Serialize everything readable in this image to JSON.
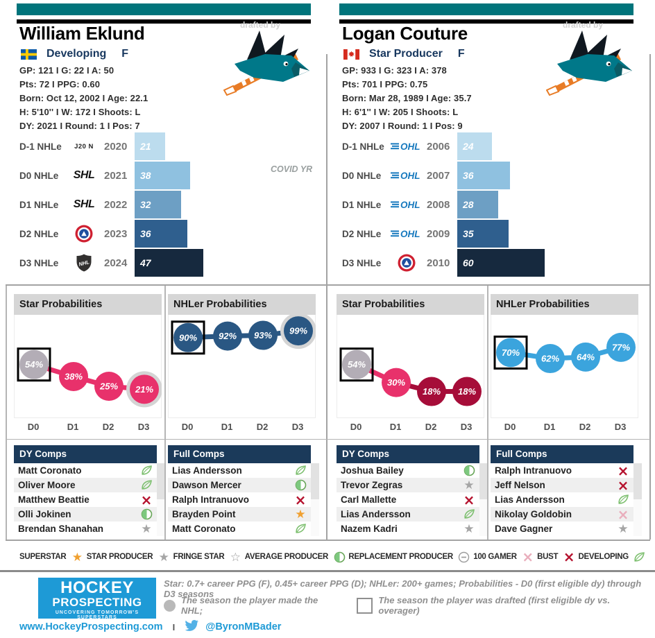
{
  "colors": {
    "teal_bar": "#00747b",
    "black_bar": "#000000",
    "bar_palette": [
      "#bcdcee",
      "#8fc1e0",
      "#6d9fc4",
      "#2f5f8e",
      "#16293e"
    ],
    "star_pink": "#e8316b",
    "star_crimson": "#a60d39",
    "nhler_navy": "#2a5783",
    "nhler_ltblue": "#3ba4dd",
    "made_nhl_gray": "#b3adb6",
    "table_header_navy": "#1b3a5a",
    "panel_header_gray": "#d6d6d6",
    "superstar_orange": "#f0a030",
    "gray_star": "#a5a5a5",
    "developing_green": "#7cbf6e",
    "bust_red": "#b5122e",
    "gamer_pink": "#e9aebc",
    "brand_blue": "#1e9ad6",
    "ohl_blue": "#1779be",
    "ahl_red": "#cf2031",
    "ahl_blue": "#1e4f9f"
  },
  "players": [
    {
      "name": "William Eklund",
      "flag": "sweden",
      "status": "Developing",
      "position": "F",
      "stat_lines": [
        "GP: 121 I G: 22 I A: 50",
        "Pts: 72 I PPG: 0.60",
        "Born: Oct 12, 2002 I Age: 22.1",
        "H: 5'10'' I W: 172 I Shoots: L",
        "DY: 2021 I Round: 1 I Pos: 7"
      ],
      "drafted_by_label": "drafted by",
      "team_logo": "san-jose-sharks",
      "charts": {
        "nhle": "eklund-nhle",
        "star": "eklund-star",
        "nhler": "eklund-nhler"
      },
      "dy_comps": {
        "title": "DY Comps",
        "rows": [
          {
            "name": "Matt Coronato",
            "icon": "developing"
          },
          {
            "name": "Oliver Moore",
            "icon": "developing"
          },
          {
            "name": "Matthew Beattie",
            "icon": "bust"
          },
          {
            "name": "Olli Jokinen",
            "icon": "average-producer"
          },
          {
            "name": "Brendan Shanahan",
            "icon": "star-producer"
          }
        ]
      },
      "full_comps": {
        "title": "Full Comps",
        "rows": [
          {
            "name": "Lias Andersson",
            "icon": "developing"
          },
          {
            "name": "Dawson Mercer",
            "icon": "average-producer"
          },
          {
            "name": "Ralph Intranuovo",
            "icon": "bust"
          },
          {
            "name": "Brayden Point",
            "icon": "superstar"
          },
          {
            "name": "Matt Coronato",
            "icon": "developing"
          }
        ]
      }
    },
    {
      "name": "Logan Couture",
      "flag": "canada",
      "status": "Star Producer",
      "position": "F",
      "stat_lines": [
        "GP: 933 I G: 323 I A: 378",
        "Pts: 701 I PPG: 0.75",
        "Born: Mar 28, 1989 I Age: 35.7",
        "H: 6'1'' I W: 205 I Shoots: L",
        "DY: 2007 I Round: 1 I Pos: 9"
      ],
      "drafted_by_label": "drafted by",
      "team_logo": "san-jose-sharks",
      "charts": {
        "nhle": "couture-nhle",
        "star": "couture-star",
        "nhler": "couture-nhler"
      },
      "dy_comps": {
        "title": "DY Comps",
        "rows": [
          {
            "name": "Joshua Bailey",
            "icon": "average-producer"
          },
          {
            "name": "Trevor Zegras",
            "icon": "star-producer"
          },
          {
            "name": "Carl Mallette",
            "icon": "bust"
          },
          {
            "name": "Lias Andersson",
            "icon": "developing"
          },
          {
            "name": "Nazem Kadri",
            "icon": "star-producer"
          }
        ]
      },
      "full_comps": {
        "title": "Full Comps",
        "rows": [
          {
            "name": "Ralph Intranuovo",
            "icon": "bust"
          },
          {
            "name": "Jeff Nelson",
            "icon": "bust"
          },
          {
            "name": "Lias Andersson",
            "icon": "developing"
          },
          {
            "name": "Nikolay Goldobin",
            "icon": "100-gamer"
          },
          {
            "name": "Dave Gagner",
            "icon": "star-producer"
          }
        ]
      }
    }
  ],
  "chart_data": [
    {
      "id": "eklund-nhle",
      "type": "bar",
      "orientation": "horizontal",
      "row_labels": [
        "D-1 NHLe",
        "D0 NHLe",
        "D1 NHLe",
        "D2 NHLe",
        "D3 NHLe"
      ],
      "leagues": [
        "J20 N",
        "SHL",
        "SHL",
        "AHL",
        "NHL"
      ],
      "years": [
        "2020",
        "2021",
        "2022",
        "2023",
        "2024"
      ],
      "values": [
        21,
        38,
        32,
        36,
        47
      ],
      "xlim": [
        0,
        65
      ],
      "annotation": {
        "text": "COVID YR",
        "row_index": 1
      }
    },
    {
      "id": "eklund-star",
      "type": "line",
      "title": "Star Probabilities",
      "x": [
        "D0",
        "D1",
        "D2",
        "D3"
      ],
      "values": [
        54,
        38,
        25,
        21
      ],
      "unit": "%",
      "ylim": [
        0,
        100
      ],
      "point_colors": [
        "gray",
        "pink",
        "pink",
        "pink"
      ],
      "drafted_index": 0,
      "made_nhl_halo_index": 3
    },
    {
      "id": "eklund-nhler",
      "type": "line",
      "title": "NHLer Probabilities",
      "x": [
        "D0",
        "D1",
        "D2",
        "D3"
      ],
      "values": [
        90,
        92,
        93,
        99
      ],
      "unit": "%",
      "ylim": [
        0,
        100
      ],
      "point_colors": [
        "navy",
        "navy",
        "navy",
        "navy"
      ],
      "drafted_index": 0,
      "made_nhl_halo_index": 3
    },
    {
      "id": "couture-nhle",
      "type": "bar",
      "orientation": "horizontal",
      "row_labels": [
        "D-1 NHLe",
        "D0 NHLe",
        "D1 NHLe",
        "D2 NHLe",
        "D3 NHLe"
      ],
      "leagues": [
        "OHL",
        "OHL",
        "OHL",
        "OHL",
        "AHL"
      ],
      "years": [
        "2006",
        "2007",
        "2008",
        "2009",
        "2010"
      ],
      "values": [
        24,
        36,
        28,
        35,
        60
      ],
      "xlim": [
        0,
        65
      ],
      "annotation": null
    },
    {
      "id": "couture-star",
      "type": "line",
      "title": "Star Probabilities",
      "x": [
        "D0",
        "D1",
        "D2",
        "D3"
      ],
      "values": [
        54,
        30,
        18,
        18
      ],
      "unit": "%",
      "ylim": [
        0,
        100
      ],
      "point_colors": [
        "gray",
        "pink",
        "crimson",
        "crimson"
      ],
      "drafted_index": 0,
      "made_nhl_halo_index": null
    },
    {
      "id": "couture-nhler",
      "type": "line",
      "title": "NHLer Probabilities",
      "x": [
        "D0",
        "D1",
        "D2",
        "D3"
      ],
      "values": [
        70,
        62,
        64,
        77
      ],
      "unit": "%",
      "ylim": [
        0,
        100
      ],
      "point_colors": [
        "ltblue",
        "ltblue",
        "ltblue",
        "ltblue"
      ],
      "drafted_index": 0,
      "made_nhl_halo_index": null
    }
  ],
  "legend": {
    "items": [
      {
        "label": "SUPERSTAR",
        "icon": "superstar"
      },
      {
        "label": "STAR PRODUCER",
        "icon": "star-producer"
      },
      {
        "label": "FRINGE STAR",
        "icon": "fringe-star"
      },
      {
        "label": "AVERAGE PRODUCER",
        "icon": "average-producer"
      },
      {
        "label": "REPLACEMENT PRODUCER",
        "icon": "replacement-producer"
      },
      {
        "label": "100 GAMER",
        "icon": "100-gamer"
      },
      {
        "label": "BUST",
        "icon": "bust"
      },
      {
        "label": "DEVELOPING",
        "icon": "developing"
      }
    ]
  },
  "footer": {
    "logo_line1": "HOCKEY",
    "logo_line2": "PROSPECTING",
    "logo_tagline": "UNCOVERING TOMORROW'S SUPERSTARS",
    "note_criteria": "Star: 0.7+ career PPG (F), 0.45+ career PPG (D); NHLer: 200+ games; Probabilities - D0 (first eligible dy) through D3 seasons",
    "note_made_nhl": "The season the player made the NHL;",
    "note_drafted": "The season the player was drafted (first eligible dy vs. overager)",
    "website": "www.HockeyProspecting.com",
    "separator": "I",
    "twitter": "@ByronMBader"
  }
}
